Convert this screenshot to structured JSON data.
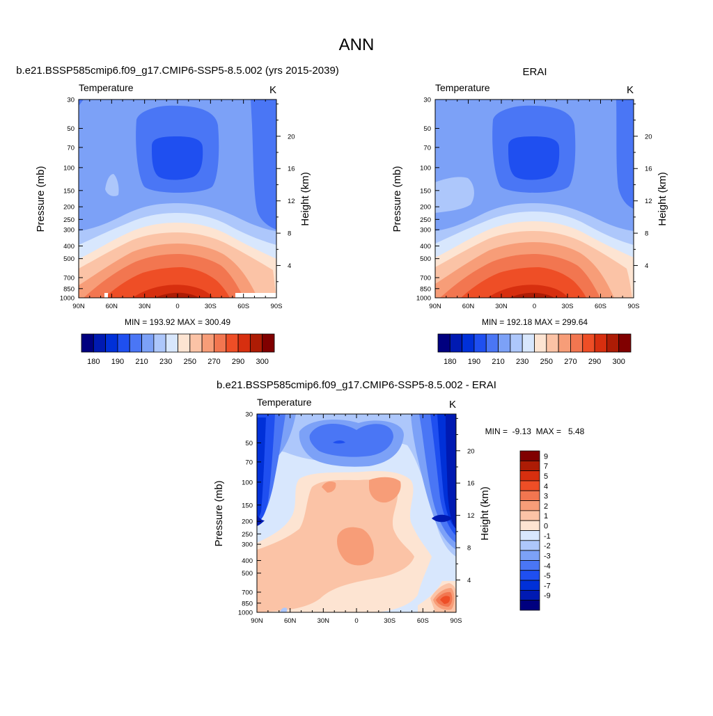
{
  "figure_title": "ANN",
  "chart_data": [
    {
      "type": "heatmap",
      "id": "model",
      "title": "b.e21.BSSP585cmip6.f09_g17.CMIP6-SSP5-8.5.002 (yrs 2015-2039)",
      "left_string": "Temperature",
      "right_string": "K",
      "ylabel": "Pressure (mb)",
      "ylabel_right": "Height (km)",
      "x_ticks": [
        "90N",
        "60N",
        "30N",
        "0",
        "30S",
        "60S",
        "90S"
      ],
      "y_ticks": [
        "30",
        "50",
        "70",
        "100",
        "150",
        "200",
        "250",
        "300",
        "400",
        "500",
        "700",
        "850",
        "1000"
      ],
      "height_ticks": [
        "4",
        "8",
        "12",
        "16",
        "20"
      ],
      "stats": "MIN = 193.92  MAX = 300.49",
      "min": 193.92,
      "max": 300.49,
      "colorbar": {
        "orientation": "horizontal",
        "labels": [
          "180",
          "190",
          "210",
          "230",
          "250",
          "270",
          "290",
          "300"
        ],
        "colors": [
          "#00007f",
          "#001ab2",
          "#0030d8",
          "#1f4ff0",
          "#4a76f5",
          "#7ca1f7",
          "#adc7fb",
          "#d8e7fd",
          "#fde4d2",
          "#fbc3a6",
          "#f79d78",
          "#f27650",
          "#ee4e26",
          "#d72f0f",
          "#ad1c05",
          "#800000"
        ]
      }
    },
    {
      "type": "heatmap",
      "id": "obs",
      "title": "ERAI",
      "left_string": "Temperature",
      "right_string": "K",
      "ylabel": "Pressure (mb)",
      "ylabel_right": "Height (km)",
      "x_ticks": [
        "90N",
        "60N",
        "30N",
        "0",
        "30S",
        "60S",
        "90S"
      ],
      "y_ticks": [
        "30",
        "50",
        "70",
        "100",
        "150",
        "200",
        "250",
        "300",
        "400",
        "500",
        "700",
        "850",
        "1000"
      ],
      "height_ticks": [
        "4",
        "8",
        "12",
        "16",
        "20"
      ],
      "stats": "MIN = 192.18  MAX = 299.64",
      "min": 192.18,
      "max": 299.64,
      "colorbar": {
        "orientation": "horizontal",
        "labels": [
          "180",
          "190",
          "210",
          "230",
          "250",
          "270",
          "290",
          "300"
        ],
        "colors": [
          "#00007f",
          "#001ab2",
          "#0030d8",
          "#1f4ff0",
          "#4a76f5",
          "#7ca1f7",
          "#adc7fb",
          "#d8e7fd",
          "#fde4d2",
          "#fbc3a6",
          "#f79d78",
          "#f27650",
          "#ee4e26",
          "#d72f0f",
          "#ad1c05",
          "#800000"
        ]
      }
    },
    {
      "type": "heatmap",
      "id": "diff",
      "title": "b.e21.BSSP585cmip6.f09_g17.CMIP6-SSP5-8.5.002 - ERAI",
      "left_string": "Temperature",
      "right_string": "K",
      "ylabel": "Pressure (mb)",
      "ylabel_right": "Height (km)",
      "x_ticks": [
        "90N",
        "60N",
        "30N",
        "0",
        "30S",
        "60S",
        "90S"
      ],
      "y_ticks": [
        "30",
        "50",
        "70",
        "100",
        "150",
        "200",
        "250",
        "300",
        "400",
        "500",
        "700",
        "850",
        "1000"
      ],
      "height_ticks": [
        "4",
        "8",
        "12",
        "16",
        "20"
      ],
      "stats": "MIN =  -9.13  MAX =   5.48",
      "min": -9.13,
      "max": 5.48,
      "colorbar": {
        "orientation": "vertical",
        "labels": [
          "9",
          "7",
          "5",
          "4",
          "3",
          "2",
          "1",
          "0",
          "-1",
          "-2",
          "-3",
          "-4",
          "-5",
          "-7",
          "-9"
        ],
        "colors": [
          "#800000",
          "#ad1c05",
          "#d72f0f",
          "#ee4e26",
          "#f27650",
          "#f79d78",
          "#fbc3a6",
          "#fde4d2",
          "#d8e7fd",
          "#adc7fb",
          "#7ca1f7",
          "#4a76f5",
          "#1f4ff0",
          "#0030d8",
          "#001ab2",
          "#00007f"
        ]
      }
    }
  ]
}
